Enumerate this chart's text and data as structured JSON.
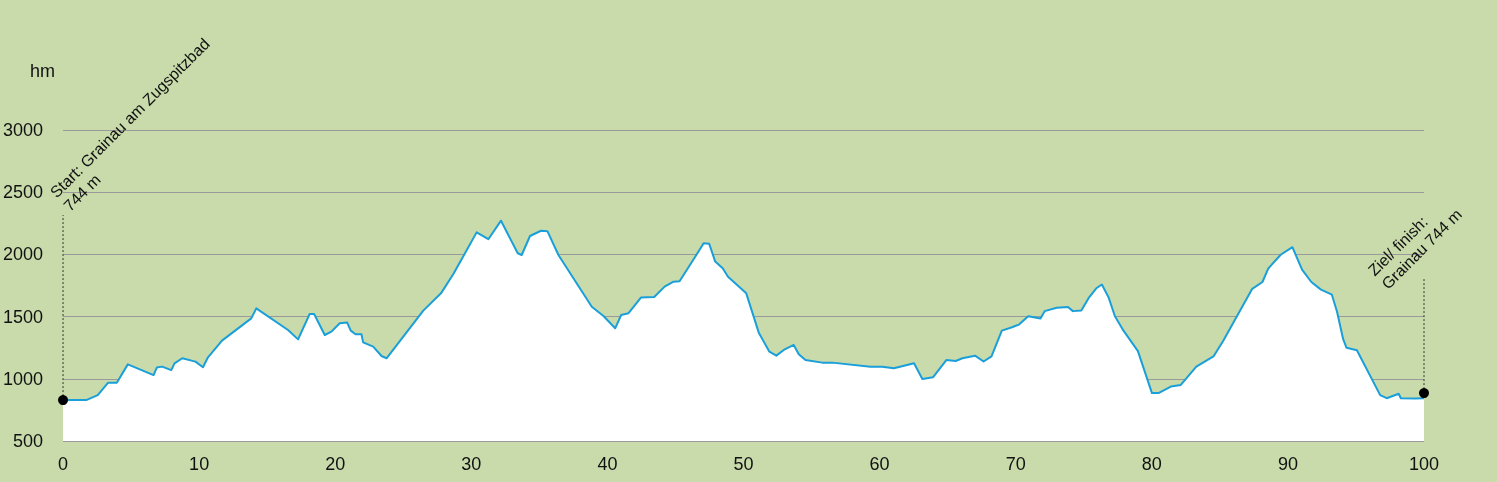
{
  "chart_data": {
    "type": "area",
    "ylabel": "hm",
    "color": "#1a9fd9",
    "marker": "none",
    "grid": "y",
    "xlim": [
      0,
      100
    ],
    "xticks": [
      0,
      10,
      20,
      30,
      40,
      50,
      60,
      70,
      80,
      90,
      100
    ],
    "ylim": [
      500,
      3000
    ],
    "yticks": [
      500,
      1000,
      1500,
      2000,
      2500,
      3000
    ],
    "x": [
      0,
      1.7,
      2.55,
      3.3,
      3.95,
      4.76,
      6.65,
      6.89,
      7.28,
      7.95,
      8.19,
      8.76,
      9.73,
      10.28,
      10.65,
      11.68,
      13.83,
      14.2,
      16.53,
      17.27,
      18.12,
      18.45,
      19.23,
      19.72,
      20.33,
      20.88,
      21.14,
      21.49,
      21.93,
      22.05,
      22.79,
      23.4,
      23.77,
      26.47,
      27.77,
      28.68,
      30.39,
      31.25,
      32.18,
      33.41,
      33.7,
      34.31,
      35.12,
      35.59,
      36.4,
      38.85,
      39.71,
      40.57,
      41.01,
      41.55,
      42.46,
      43.44,
      44.2,
      44.86,
      45.3,
      46.45,
      47.07,
      47.48,
      47.92,
      48.47,
      48.86,
      50.2,
      51.12,
      51.9,
      52.41,
      53.03,
      53.69,
      54.06,
      54.55,
      55.78,
      56.51,
      59.33,
      60.19,
      61.05,
      62.53,
      63.14,
      63.92,
      64.9,
      65.59,
      66.08,
      67.01,
      67.64,
      68.22,
      68.98,
      69.73,
      70.24,
      70.92,
      71.82,
      72.13,
      73.01,
      73.84,
      74.2,
      74.82,
      75.35,
      75.95,
      76.33,
      76.83,
      77.29,
      77.92,
      78.98,
      80.01,
      80.49,
      81.4,
      82.13,
      83.27,
      84.53,
      85.24,
      87.38,
      88.13,
      88.56,
      89.47,
      90.33,
      91.04,
      91.72,
      92.43,
      93.23,
      93.61,
      94.06,
      94.31,
      95.07,
      96.78,
      97.26,
      98.14,
      98.3,
      99.35,
      100
    ],
    "values": [
      829,
      829,
      869,
      968,
      968,
      1116,
      1030,
      1090,
      1098,
      1070,
      1124,
      1165,
      1138,
      1093,
      1173,
      1307,
      1486,
      1566,
      1392,
      1317,
      1521,
      1521,
      1352,
      1379,
      1446,
      1452,
      1387,
      1358,
      1358,
      1293,
      1258,
      1183,
      1165,
      1548,
      1687,
      1842,
      2177,
      2122,
      2271,
      2009,
      1995,
      2148,
      2190,
      2187,
      1995,
      1579,
      1505,
      1406,
      1513,
      1527,
      1653,
      1658,
      1741,
      1781,
      1784,
      1981,
      2089,
      2085,
      1942,
      1888,
      1821,
      1687,
      1371,
      1218,
      1186,
      1237,
      1272,
      1197,
      1151,
      1130,
      1130,
      1097,
      1097,
      1085,
      1125,
      998,
      1012,
      1151,
      1143,
      1165,
      1186,
      1139,
      1180,
      1387,
      1414,
      1436,
      1503,
      1484,
      1544,
      1571,
      1578,
      1544,
      1549,
      1648,
      1730,
      1758,
      1653,
      1503,
      1387,
      1222,
      885,
      885,
      938,
      951,
      1098,
      1180,
      1304,
      1723,
      1778,
      1887,
      1997,
      2058,
      1877,
      1778,
      1717,
      1676,
      1539,
      1318,
      1249,
      1230,
      869,
      844,
      880,
      844,
      842,
      844
    ],
    "annotations": [
      {
        "text": "Start: Grainau am Zugspitzbad\n744 m",
        "x": 0,
        "y": 829
      },
      {
        "text": "Ziel/ finish:\nGrainau 744 m",
        "x": 100,
        "y": 885
      }
    ]
  }
}
